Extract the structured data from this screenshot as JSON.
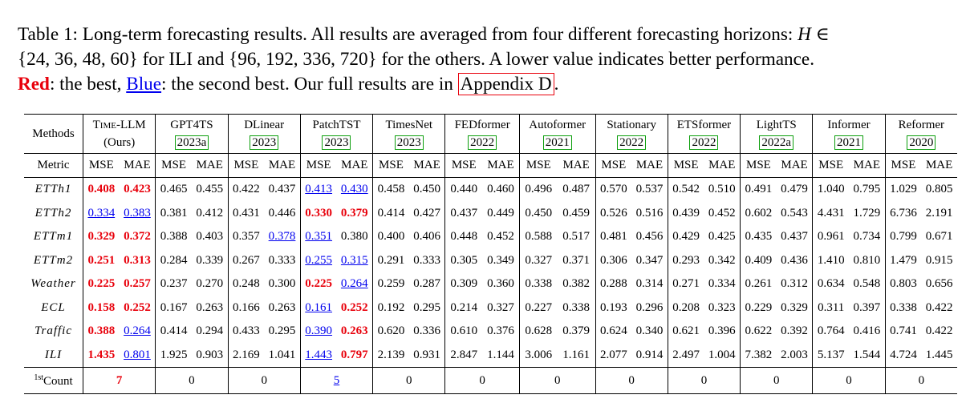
{
  "caption": {
    "line1": "Table 1: Long-term forecasting results. All results are averaged from four different forecasting horizons: ",
    "h_symbol": "H ∈",
    "line2": "{24, 36, 48, 60} for ILI and {96, 192, 336, 720} for the others. A lower value indicates better performance.",
    "red_label": "Red",
    "mid_text": ": the best, ",
    "blue_label": "Blue",
    "tail_text": ": the second best. Our full results are in ",
    "appendix_link": "Appendix D",
    "period": "."
  },
  "table": {
    "methods_header": "Methods",
    "metric_header": "Metric",
    "count_header": "Count",
    "count_sup": "1st",
    "mse_label": "MSE",
    "mae_label": "MAE",
    "models": [
      {
        "name": "Time-LLM",
        "sub": "(Ours)"
      },
      {
        "name": "GPT4TS",
        "sub": "2023a"
      },
      {
        "name": "DLinear",
        "sub": "2023"
      },
      {
        "name": "PatchTST",
        "sub": "2023"
      },
      {
        "name": "TimesNet",
        "sub": "2023"
      },
      {
        "name": "FEDformer",
        "sub": "2022"
      },
      {
        "name": "Autoformer",
        "sub": "2021"
      },
      {
        "name": "Stationary",
        "sub": "2022"
      },
      {
        "name": "ETSformer",
        "sub": "2022"
      },
      {
        "name": "LightTS",
        "sub": "2022a"
      },
      {
        "name": "Informer",
        "sub": "2021"
      },
      {
        "name": "Reformer",
        "sub": "2020"
      }
    ],
    "rows": [
      {
        "dataset": "ETTh1",
        "values": [
          "0.408",
          "0.423",
          "0.465",
          "0.455",
          "0.422",
          "0.437",
          "0.413",
          "0.430",
          "0.458",
          "0.450",
          "0.440",
          "0.460",
          "0.496",
          "0.487",
          "0.570",
          "0.537",
          "0.542",
          "0.510",
          "0.491",
          "0.479",
          "1.040",
          "0.795",
          "1.029",
          "0.805"
        ]
      },
      {
        "dataset": "ETTh2",
        "values": [
          "0.334",
          "0.383",
          "0.381",
          "0.412",
          "0.431",
          "0.446",
          "0.330",
          "0.379",
          "0.414",
          "0.427",
          "0.437",
          "0.449",
          "0.450",
          "0.459",
          "0.526",
          "0.516",
          "0.439",
          "0.452",
          "0.602",
          "0.543",
          "4.431",
          "1.729",
          "6.736",
          "2.191"
        ]
      },
      {
        "dataset": "ETTm1",
        "values": [
          "0.329",
          "0.372",
          "0.388",
          "0.403",
          "0.357",
          "0.378",
          "0.351",
          "0.380",
          "0.400",
          "0.406",
          "0.448",
          "0.452",
          "0.588",
          "0.517",
          "0.481",
          "0.456",
          "0.429",
          "0.425",
          "0.435",
          "0.437",
          "0.961",
          "0.734",
          "0.799",
          "0.671"
        ]
      },
      {
        "dataset": "ETTm2",
        "values": [
          "0.251",
          "0.313",
          "0.284",
          "0.339",
          "0.267",
          "0.333",
          "0.255",
          "0.315",
          "0.291",
          "0.333",
          "0.305",
          "0.349",
          "0.327",
          "0.371",
          "0.306",
          "0.347",
          "0.293",
          "0.342",
          "0.409",
          "0.436",
          "1.410",
          "0.810",
          "1.479",
          "0.915"
        ]
      },
      {
        "dataset": "Weather",
        "values": [
          "0.225",
          "0.257",
          "0.237",
          "0.270",
          "0.248",
          "0.300",
          "0.225",
          "0.264",
          "0.259",
          "0.287",
          "0.309",
          "0.360",
          "0.338",
          "0.382",
          "0.288",
          "0.314",
          "0.271",
          "0.334",
          "0.261",
          "0.312",
          "0.634",
          "0.548",
          "0.803",
          "0.656"
        ]
      },
      {
        "dataset": "ECL",
        "values": [
          "0.158",
          "0.252",
          "0.167",
          "0.263",
          "0.166",
          "0.263",
          "0.161",
          "0.252",
          "0.192",
          "0.295",
          "0.214",
          "0.327",
          "0.227",
          "0.338",
          "0.193",
          "0.296",
          "0.208",
          "0.323",
          "0.229",
          "0.329",
          "0.311",
          "0.397",
          "0.338",
          "0.422"
        ]
      },
      {
        "dataset": "Traffic",
        "values": [
          "0.388",
          "0.264",
          "0.414",
          "0.294",
          "0.433",
          "0.295",
          "0.390",
          "0.263",
          "0.620",
          "0.336",
          "0.610",
          "0.376",
          "0.628",
          "0.379",
          "0.624",
          "0.340",
          "0.621",
          "0.396",
          "0.622",
          "0.392",
          "0.764",
          "0.416",
          "0.741",
          "0.422"
        ]
      },
      {
        "dataset": "ILI",
        "values": [
          "1.435",
          "0.801",
          "1.925",
          "0.903",
          "2.169",
          "1.041",
          "1.443",
          "0.797",
          "2.139",
          "0.931",
          "2.847",
          "1.144",
          "3.006",
          "1.161",
          "2.077",
          "0.914",
          "2.497",
          "1.004",
          "7.382",
          "2.003",
          "5.137",
          "1.544",
          "4.724",
          "1.445"
        ]
      }
    ],
    "counts": [
      "7",
      "0",
      "0",
      "5",
      "0",
      "0",
      "0",
      "0",
      "0",
      "0",
      "0",
      "0"
    ],
    "highlights": {
      "best": [
        [
          0,
          0
        ],
        [
          0,
          1
        ],
        [
          1,
          6
        ],
        [
          1,
          7
        ],
        [
          2,
          0
        ],
        [
          2,
          1
        ],
        [
          3,
          0
        ],
        [
          3,
          1
        ],
        [
          4,
          0
        ],
        [
          4,
          1
        ],
        [
          4,
          6
        ],
        [
          5,
          0
        ],
        [
          5,
          1
        ],
        [
          5,
          7
        ],
        [
          6,
          0
        ],
        [
          6,
          7
        ],
        [
          7,
          0
        ],
        [
          7,
          7
        ]
      ],
      "second": [
        [
          0,
          6
        ],
        [
          0,
          7
        ],
        [
          1,
          0
        ],
        [
          1,
          1
        ],
        [
          2,
          5
        ],
        [
          2,
          6
        ],
        [
          3,
          6
        ],
        [
          3,
          7
        ],
        [
          4,
          7
        ],
        [
          5,
          6
        ],
        [
          6,
          1
        ],
        [
          6,
          6
        ],
        [
          7,
          1
        ],
        [
          7,
          6
        ]
      ],
      "count_best": [
        0
      ],
      "count_second": [
        3
      ]
    },
    "colors": {
      "best": "#e8000b",
      "second": "#0000ee",
      "year_box": "#0c9e0c"
    }
  }
}
